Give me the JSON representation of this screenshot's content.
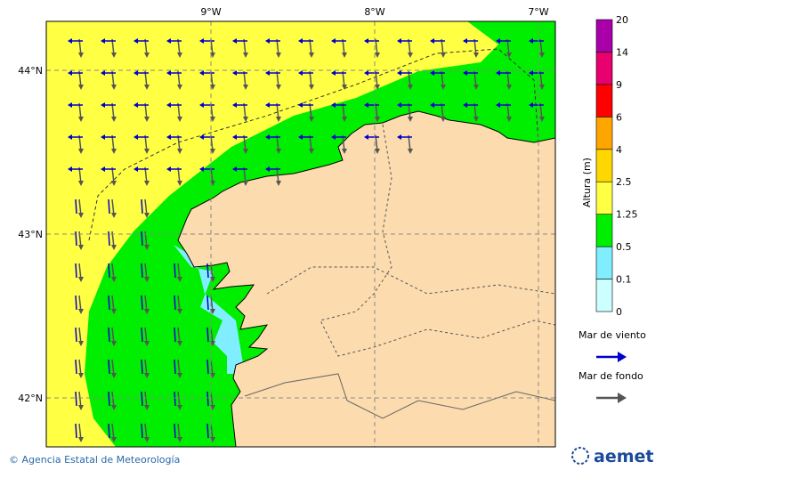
{
  "map": {
    "lon_labels": [
      "9°W",
      "8°W",
      "7°W"
    ],
    "lat_labels": [
      "44°N",
      "43°N",
      "42°N"
    ]
  },
  "colorbar": {
    "title": "Altura (m)",
    "labels": [
      "0",
      "0.1",
      "0.5",
      "1.25",
      "2.5",
      "4",
      "6",
      "9",
      "14",
      "20"
    ],
    "colors": [
      "#ccffff",
      "#80eeff",
      "#00ee00",
      "#ffff44",
      "#ffd700",
      "#ffa500",
      "#ff0000",
      "#e8006e",
      "#aa00aa"
    ]
  },
  "legend": {
    "items": [
      {
        "label": "Mar de viento",
        "color": "#0000cc"
      },
      {
        "label": "Mar de fondo",
        "color": "#555555"
      }
    ]
  },
  "footer": {
    "credit": "© Agencia Estatal de Meteorología",
    "logo": "aemet"
  }
}
